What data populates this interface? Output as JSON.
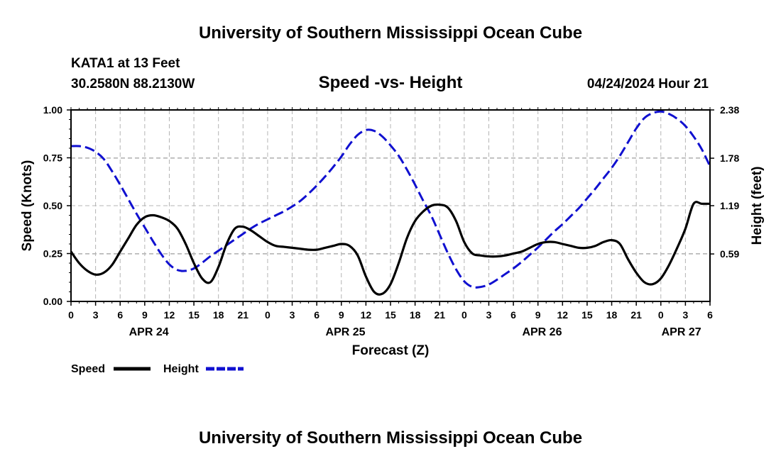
{
  "header": {
    "title": "University of Southern Mississippi Ocean Cube",
    "station": "KATA1 at 13 Feet",
    "coords": "30.2580N  88.2130W",
    "datetime": "04/24/2024 Hour 21",
    "footer_title": "University of Southern Mississippi Ocean Cube"
  },
  "chart_data": {
    "type": "line",
    "title": "Speed -vs- Height",
    "xlabel": "Forecast (Z)",
    "ylabel": "Speed (Knots)",
    "y2label": "Height (feet)",
    "xlim": [
      0,
      78
    ],
    "ylim": [
      0,
      1.0
    ],
    "y2lim": [
      0,
      2.38
    ],
    "x_tick_labels": [
      "0",
      "3",
      "6",
      "9",
      "12",
      "15",
      "18",
      "21",
      "0",
      "3",
      "6",
      "9",
      "12",
      "15",
      "18",
      "21",
      "0",
      "3",
      "6",
      "9",
      "12",
      "15",
      "18",
      "21",
      "0",
      "3",
      "6"
    ],
    "y_ticks": [
      0.0,
      0.25,
      0.5,
      0.75,
      1.0
    ],
    "y_tick_labels": [
      "0.00",
      "0.25",
      "0.50",
      "0.75",
      "1.00"
    ],
    "y2_ticks": [
      0.59,
      1.19,
      1.78,
      2.38
    ],
    "y2_tick_labels": [
      "0.59",
      "1.19",
      "1.78",
      "2.38"
    ],
    "date_labels": [
      {
        "label": "APR 24",
        "x": 9.5
      },
      {
        "label": "APR 25",
        "x": 33.5
      },
      {
        "label": "APR 26",
        "x": 57.5
      },
      {
        "label": "APR 27",
        "x": 74.5
      }
    ],
    "grid": true,
    "series": [
      {
        "name": "Speed",
        "color": "#000000",
        "axis": "left",
        "style": "solid",
        "x": [
          0,
          1,
          2,
          3,
          4,
          5,
          6,
          7,
          8,
          9,
          10,
          11,
          12,
          13,
          14,
          15,
          16,
          17,
          18,
          19,
          20,
          21,
          22,
          23,
          24,
          25,
          26,
          27,
          28,
          29,
          30,
          31,
          32,
          33,
          34,
          35,
          36,
          37,
          38,
          39,
          40,
          41,
          42,
          43,
          44,
          45,
          46,
          47,
          48,
          49,
          50,
          51,
          52,
          53,
          54,
          55,
          56,
          57,
          58,
          59,
          60,
          61,
          62,
          63,
          64,
          65,
          66,
          67,
          68,
          69,
          70,
          71,
          72,
          73,
          74,
          75,
          76,
          77,
          78
        ],
        "values": [
          0.26,
          0.2,
          0.16,
          0.14,
          0.15,
          0.19,
          0.26,
          0.33,
          0.4,
          0.44,
          0.45,
          0.44,
          0.42,
          0.38,
          0.3,
          0.2,
          0.12,
          0.1,
          0.18,
          0.3,
          0.38,
          0.39,
          0.37,
          0.34,
          0.31,
          0.29,
          0.285,
          0.28,
          0.275,
          0.27,
          0.27,
          0.28,
          0.29,
          0.3,
          0.29,
          0.24,
          0.13,
          0.05,
          0.04,
          0.09,
          0.2,
          0.33,
          0.42,
          0.47,
          0.5,
          0.505,
          0.49,
          0.42,
          0.31,
          0.25,
          0.24,
          0.235,
          0.235,
          0.24,
          0.25,
          0.26,
          0.28,
          0.3,
          0.31,
          0.31,
          0.3,
          0.29,
          0.28,
          0.28,
          0.29,
          0.31,
          0.32,
          0.3,
          0.22,
          0.15,
          0.1,
          0.09,
          0.12,
          0.19,
          0.28,
          0.38,
          0.51,
          0.51,
          0.51
        ]
      },
      {
        "name": "Height",
        "color": "#1010d0",
        "axis": "right",
        "style": "dashed",
        "x": [
          0,
          1,
          2,
          3,
          4,
          5,
          6,
          7,
          8,
          9,
          10,
          11,
          12,
          13,
          14,
          15,
          16,
          17,
          18,
          19,
          20,
          21,
          22,
          23,
          24,
          25,
          26,
          27,
          28,
          29,
          30,
          31,
          32,
          33,
          34,
          35,
          36,
          37,
          38,
          39,
          40,
          41,
          42,
          43,
          44,
          45,
          46,
          47,
          48,
          49,
          50,
          51,
          52,
          53,
          54,
          55,
          56,
          57,
          58,
          59,
          60,
          61,
          62,
          63,
          64,
          65,
          66,
          67,
          68,
          69,
          70,
          71,
          72,
          73,
          74,
          75,
          76,
          77,
          78
        ],
        "values": [
          1.93,
          1.93,
          1.91,
          1.86,
          1.77,
          1.62,
          1.45,
          1.27,
          1.09,
          0.92,
          0.75,
          0.59,
          0.46,
          0.39,
          0.38,
          0.41,
          0.48,
          0.56,
          0.63,
          0.7,
          0.77,
          0.84,
          0.91,
          0.97,
          1.02,
          1.07,
          1.12,
          1.18,
          1.25,
          1.34,
          1.44,
          1.55,
          1.67,
          1.8,
          1.95,
          2.07,
          2.13,
          2.12,
          2.05,
          1.94,
          1.81,
          1.64,
          1.45,
          1.25,
          1.06,
          0.83,
          0.6,
          0.4,
          0.25,
          0.18,
          0.18,
          0.21,
          0.27,
          0.34,
          0.41,
          0.49,
          0.58,
          0.67,
          0.77,
          0.87,
          0.96,
          1.06,
          1.16,
          1.28,
          1.4,
          1.53,
          1.66,
          1.81,
          1.98,
          2.15,
          2.28,
          2.34,
          2.36,
          2.33,
          2.27,
          2.18,
          2.05,
          1.89,
          1.68
        ]
      }
    ],
    "legend": [
      {
        "label": "Speed",
        "color": "#000000",
        "style": "solid"
      },
      {
        "label": "Height",
        "color": "#1010d0",
        "style": "dashed"
      }
    ]
  }
}
